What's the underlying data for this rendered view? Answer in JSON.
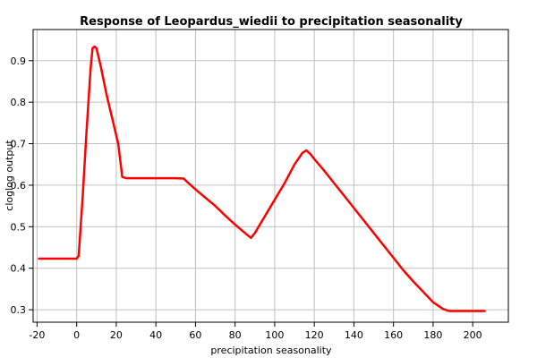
{
  "chart_data": {
    "type": "line",
    "title": "Response of Leopardus_wiedii to precipitation seasonality",
    "xlabel": "precipitation seasonality",
    "ylabel": "cloglog output",
    "xlim": [
      -22,
      218
    ],
    "ylim": [
      0.27,
      0.975
    ],
    "x_ticks": [
      -20,
      0,
      20,
      40,
      60,
      80,
      100,
      120,
      140,
      160,
      180,
      200
    ],
    "y_ticks": [
      0.3,
      0.4,
      0.5,
      0.6,
      0.7,
      0.8,
      0.9
    ],
    "grid": true,
    "series": [
      {
        "color": "#ff0000",
        "x": [
          -19,
          0,
          1,
          3,
          5,
          7,
          8,
          9,
          10,
          12,
          15,
          18,
          21,
          23,
          25,
          30,
          40,
          50,
          54,
          56,
          60,
          65,
          70,
          75,
          80,
          85,
          88,
          90,
          95,
          100,
          105,
          110,
          114,
          116,
          118,
          120,
          125,
          130,
          135,
          140,
          145,
          150,
          155,
          160,
          165,
          170,
          175,
          180,
          185,
          188,
          195,
          200,
          206
        ],
        "y": [
          0.423,
          0.423,
          0.43,
          0.57,
          0.73,
          0.88,
          0.93,
          0.934,
          0.93,
          0.89,
          0.82,
          0.76,
          0.7,
          0.62,
          0.617,
          0.617,
          0.617,
          0.617,
          0.616,
          0.607,
          0.59,
          0.57,
          0.55,
          0.527,
          0.505,
          0.485,
          0.473,
          0.485,
          0.525,
          0.565,
          0.605,
          0.65,
          0.678,
          0.684,
          0.675,
          0.663,
          0.635,
          0.605,
          0.575,
          0.545,
          0.515,
          0.485,
          0.455,
          0.425,
          0.395,
          0.368,
          0.343,
          0.318,
          0.302,
          0.297,
          0.297,
          0.297,
          0.297
        ]
      }
    ]
  }
}
